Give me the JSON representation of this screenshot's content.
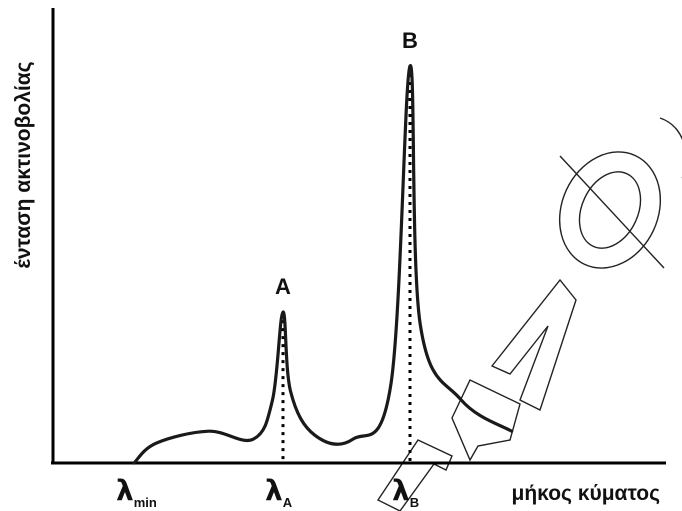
{
  "chart_data": {
    "type": "line",
    "title": "",
    "xlabel": "μήκος κύματος",
    "ylabel": "ένταση ακτινοβολίας",
    "x_ticks": [
      {
        "name": "lambda-min",
        "symbol": "λ",
        "sub": "min",
        "x": 0
      },
      {
        "name": "lambda-a",
        "symbol": "λ",
        "sub": "A",
        "x": 1
      },
      {
        "name": "lambda-b",
        "symbol": "λ",
        "sub": "B",
        "x": 2
      }
    ],
    "peaks": [
      {
        "label": "A",
        "x": 1,
        "y": 0.38
      },
      {
        "label": "B",
        "x": 2,
        "y": 1.0
      }
    ],
    "series": [
      {
        "values": [
          {
            "x": 0.0,
            "y": 0.0
          },
          {
            "x": 0.15,
            "y": 0.05
          },
          {
            "x": 0.5,
            "y": 0.08
          },
          {
            "x": 0.8,
            "y": 0.06
          },
          {
            "x": 0.93,
            "y": 0.16
          },
          {
            "x": 1.0,
            "y": 0.38
          },
          {
            "x": 1.06,
            "y": 0.18
          },
          {
            "x": 1.25,
            "y": 0.07
          },
          {
            "x": 1.55,
            "y": 0.06
          },
          {
            "x": 1.85,
            "y": 0.2
          },
          {
            "x": 2.0,
            "y": 1.0
          },
          {
            "x": 2.08,
            "y": 0.35
          },
          {
            "x": 2.4,
            "y": 0.16
          },
          {
            "x": 2.8,
            "y": 0.08
          }
        ]
      }
    ],
    "grid": false,
    "legend": "none"
  }
}
